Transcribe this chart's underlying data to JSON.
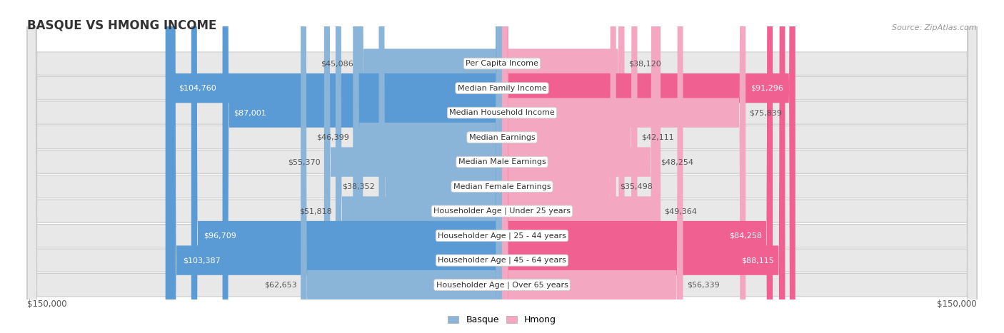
{
  "title": "BASQUE VS HMONG INCOME",
  "source": "Source: ZipAtlas.com",
  "categories": [
    "Per Capita Income",
    "Median Family Income",
    "Median Household Income",
    "Median Earnings",
    "Median Male Earnings",
    "Median Female Earnings",
    "Householder Age | Under 25 years",
    "Householder Age | 25 - 44 years",
    "Householder Age | 45 - 64 years",
    "Householder Age | Over 65 years"
  ],
  "basque_values": [
    45086,
    104760,
    87001,
    46399,
    55370,
    38352,
    51818,
    96709,
    103387,
    62653
  ],
  "hmong_values": [
    38120,
    91296,
    75839,
    42111,
    48254,
    35498,
    49364,
    84258,
    88115,
    56339
  ],
  "max_val": 150000,
  "basque_color_light": "#8ab4d8",
  "basque_color_dark": "#5b9bd5",
  "hmong_color_light": "#f4a7c0",
  "hmong_color_dark": "#f06090",
  "label_dark": "#555555",
  "label_white": "#ffffff",
  "bg_fig": "#ffffff",
  "row_bg": "#e8e8e8",
  "threshold": 80000,
  "xlabel_left": "$150,000",
  "xlabel_right": "$150,000",
  "legend_basque": "Basque",
  "legend_hmong": "Hmong"
}
